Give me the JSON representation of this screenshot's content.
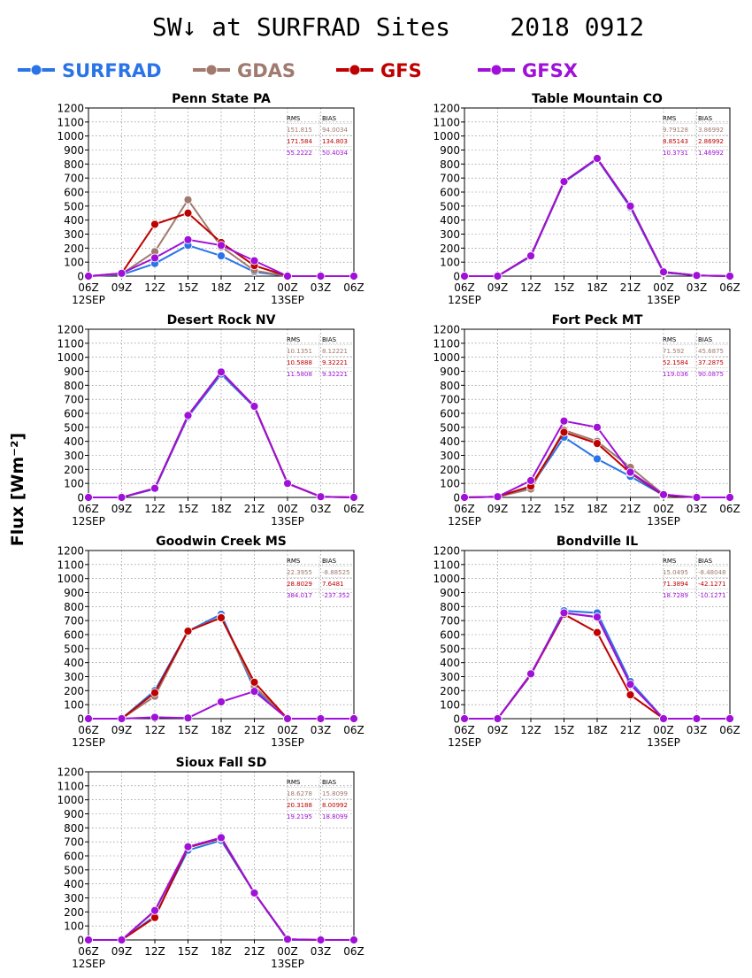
{
  "title": "SW↓ at SURFRAD Sites    2018 0912",
  "ylabel": "Flux [Wm⁻²]",
  "legend": [
    {
      "name": "SURFRAD",
      "color": "#2a74e8"
    },
    {
      "name": "GDAS",
      "color": "#a07a6e"
    },
    {
      "name": "GFS",
      "color": "#bf0000"
    },
    {
      "name": "GFSX",
      "color": "#a010d8"
    }
  ],
  "stats_headers": [
    "RMS",
    "BIAS"
  ],
  "chart_data": [
    {
      "type": "line",
      "title": "Penn State PA",
      "x": [
        "06Z",
        "09Z",
        "12Z",
        "15Z",
        "18Z",
        "21Z",
        "00Z",
        "03Z",
        "06Z"
      ],
      "date_labels": [
        "12SEP",
        "13SEP"
      ],
      "ylim": [
        0,
        1200
      ],
      "yticks": [
        0,
        100,
        200,
        300,
        400,
        500,
        600,
        700,
        800,
        900,
        1000,
        1100,
        1200
      ],
      "grid": true,
      "series": [
        {
          "name": "SURFRAD",
          "values": [
            0,
            10,
            90,
            220,
            145,
            30,
            0,
            null,
            null
          ]
        },
        {
          "name": "GDAS",
          "values": [
            0,
            15,
            175,
            545,
            210,
            40,
            0,
            0,
            0
          ]
        },
        {
          "name": "GFS",
          "values": [
            0,
            20,
            370,
            450,
            240,
            75,
            0,
            0,
            0
          ]
        },
        {
          "name": "GFSX",
          "values": [
            0,
            20,
            130,
            260,
            220,
            110,
            0,
            0,
            0
          ]
        }
      ],
      "stats": [
        {
          "name": "GDAS",
          "rms": "151.815",
          "bias": "94.0034"
        },
        {
          "name": "GFS",
          "rms": "171.584",
          "bias": "134.803"
        },
        {
          "name": "GFSX",
          "rms": "55.2222",
          "bias": "50.4034"
        }
      ]
    },
    {
      "type": "line",
      "title": "Table Mountain CO",
      "x": [
        "06Z",
        "09Z",
        "12Z",
        "15Z",
        "18Z",
        "21Z",
        "00Z",
        "03Z",
        "06Z"
      ],
      "date_labels": [
        "12SEP",
        "13SEP"
      ],
      "ylim": [
        0,
        1200
      ],
      "yticks": [
        0,
        100,
        200,
        300,
        400,
        500,
        600,
        700,
        800,
        900,
        1000,
        1100,
        1200
      ],
      "grid": true,
      "series": [
        {
          "name": "SURFRAD",
          "values": [
            0,
            0,
            140,
            670,
            835,
            490,
            25,
            5,
            0
          ]
        },
        {
          "name": "GDAS",
          "values": [
            0,
            0,
            145,
            675,
            840,
            500,
            30,
            5,
            0
          ]
        },
        {
          "name": "GFS",
          "values": [
            0,
            0,
            145,
            675,
            840,
            500,
            30,
            5,
            0
          ]
        },
        {
          "name": "GFSX",
          "values": [
            0,
            0,
            145,
            675,
            840,
            500,
            30,
            5,
            0
          ]
        }
      ],
      "stats": [
        {
          "name": "GDAS",
          "rms": "9.79128",
          "bias": "3.86992"
        },
        {
          "name": "GFS",
          "rms": "8.85143",
          "bias": "2.86992"
        },
        {
          "name": "GFSX",
          "rms": "10.3731",
          "bias": "1.46992"
        }
      ]
    },
    {
      "type": "line",
      "title": "Desert Rock NV",
      "x": [
        "06Z",
        "09Z",
        "12Z",
        "15Z",
        "18Z",
        "21Z",
        "00Z",
        "03Z",
        "06Z"
      ],
      "date_labels": [
        "12SEP",
        "13SEP"
      ],
      "ylim": [
        0,
        1200
      ],
      "yticks": [
        0,
        100,
        200,
        300,
        400,
        500,
        600,
        700,
        800,
        900,
        1000,
        1100,
        1200
      ],
      "grid": true,
      "series": [
        {
          "name": "SURFRAD",
          "values": [
            0,
            0,
            60,
            575,
            880,
            645,
            100,
            5,
            0
          ]
        },
        {
          "name": "GDAS",
          "values": [
            0,
            0,
            65,
            585,
            895,
            650,
            100,
            5,
            0
          ]
        },
        {
          "name": "GFS",
          "values": [
            0,
            0,
            65,
            585,
            895,
            650,
            100,
            5,
            0
          ]
        },
        {
          "name": "GFSX",
          "values": [
            0,
            0,
            65,
            585,
            895,
            650,
            100,
            5,
            0
          ]
        }
      ],
      "stats": [
        {
          "name": "GDAS",
          "rms": "10.1351",
          "bias": "8.12221"
        },
        {
          "name": "GFS",
          "rms": "10.5888",
          "bias": "9.32221"
        },
        {
          "name": "GFSX",
          "rms": "11.5808",
          "bias": "9.32221"
        }
      ]
    },
    {
      "type": "line",
      "title": "Fort Peck MT",
      "x": [
        "06Z",
        "09Z",
        "12Z",
        "15Z",
        "18Z",
        "21Z",
        "00Z",
        "03Z",
        "06Z"
      ],
      "date_labels": [
        "12SEP",
        "13SEP"
      ],
      "ylim": [
        0,
        1200
      ],
      "yticks": [
        0,
        100,
        200,
        300,
        400,
        500,
        600,
        700,
        800,
        900,
        1000,
        1100,
        1200
      ],
      "grid": true,
      "series": [
        {
          "name": "SURFRAD",
          "values": [
            0,
            5,
            75,
            430,
            275,
            150,
            15,
            0,
            0
          ]
        },
        {
          "name": "GDAS",
          "values": [
            0,
            5,
            60,
            480,
            400,
            215,
            20,
            0,
            0
          ]
        },
        {
          "name": "GFS",
          "values": [
            0,
            5,
            80,
            465,
            385,
            175,
            15,
            0,
            0
          ]
        },
        {
          "name": "GFSX",
          "values": [
            0,
            5,
            120,
            545,
            500,
            180,
            20,
            0,
            0
          ]
        }
      ],
      "stats": [
        {
          "name": "GDAS",
          "rms": "71.592",
          "bias": "45.6875"
        },
        {
          "name": "GFS",
          "rms": "52.1584",
          "bias": "37.2875"
        },
        {
          "name": "GFSX",
          "rms": "119.036",
          "bias": "90.0875"
        }
      ]
    },
    {
      "type": "line",
      "title": "Goodwin Creek MS",
      "x": [
        "06Z",
        "09Z",
        "12Z",
        "15Z",
        "18Z",
        "21Z",
        "00Z",
        "03Z",
        "06Z"
      ],
      "date_labels": [
        "12SEP",
        "13SEP"
      ],
      "ylim": [
        0,
        1200
      ],
      "yticks": [
        0,
        100,
        200,
        300,
        400,
        500,
        600,
        700,
        800,
        900,
        1000,
        1100,
        1200
      ],
      "grid": true,
      "series": [
        {
          "name": "SURFRAD",
          "values": [
            0,
            0,
            200,
            625,
            745,
            210,
            0,
            0,
            0
          ]
        },
        {
          "name": "GDAS",
          "values": [
            0,
            0,
            160,
            625,
            725,
            230,
            0,
            0,
            0
          ]
        },
        {
          "name": "GFS",
          "values": [
            0,
            0,
            185,
            625,
            720,
            260,
            0,
            0,
            0
          ]
        },
        {
          "name": "GFSX",
          "values": [
            0,
            0,
            10,
            5,
            120,
            195,
            0,
            0,
            0
          ]
        }
      ],
      "stats": [
        {
          "name": "GDAS",
          "rms": "22.3955",
          "bias": "-8.88525"
        },
        {
          "name": "GFS",
          "rms": "28.8029",
          "bias": "7.6481"
        },
        {
          "name": "GFSX",
          "rms": "384.017",
          "bias": "-237.352"
        }
      ]
    },
    {
      "type": "line",
      "title": "Bondville IL",
      "x": [
        "06Z",
        "09Z",
        "12Z",
        "15Z",
        "18Z",
        "21Z",
        "00Z",
        "03Z",
        "06Z"
      ],
      "date_labels": [
        "12SEP",
        "13SEP"
      ],
      "ylim": [
        0,
        1200
      ],
      "yticks": [
        0,
        100,
        200,
        300,
        400,
        500,
        600,
        700,
        800,
        900,
        1000,
        1100,
        1200
      ],
      "grid": true,
      "series": [
        {
          "name": "SURFRAD",
          "values": [
            0,
            0,
            310,
            770,
            755,
            265,
            0,
            0,
            0
          ]
        },
        {
          "name": "GDAS",
          "values": [
            0,
            0,
            315,
            755,
            725,
            245,
            0,
            0,
            0
          ]
        },
        {
          "name": "GFS",
          "values": [
            0,
            0,
            315,
            745,
            615,
            170,
            0,
            0,
            0
          ]
        },
        {
          "name": "GFSX",
          "values": [
            0,
            0,
            320,
            755,
            725,
            245,
            0,
            0,
            0
          ]
        }
      ],
      "stats": [
        {
          "name": "GDAS",
          "rms": "15.0495",
          "bias": "-8.48048"
        },
        {
          "name": "GFS",
          "rms": "71.3894",
          "bias": "-42.1271"
        },
        {
          "name": "GFSX",
          "rms": "18.7289",
          "bias": "-10.1271"
        }
      ]
    },
    {
      "type": "line",
      "title": "Sioux Fall SD",
      "x": [
        "06Z",
        "09Z",
        "12Z",
        "15Z",
        "18Z",
        "21Z",
        "00Z",
        "03Z",
        "06Z"
      ],
      "date_labels": [
        "12SEP",
        "13SEP"
      ],
      "ylim": [
        0,
        1200
      ],
      "yticks": [
        0,
        100,
        200,
        300,
        400,
        500,
        600,
        700,
        800,
        900,
        1000,
        1100,
        1200
      ],
      "grid": true,
      "series": [
        {
          "name": "SURFRAD",
          "values": [
            0,
            0,
            170,
            640,
            710,
            335,
            0,
            0,
            null
          ]
        },
        {
          "name": "GDAS",
          "values": [
            0,
            0,
            205,
            660,
            730,
            335,
            5,
            0,
            0
          ]
        },
        {
          "name": "GFS",
          "values": [
            0,
            0,
            160,
            660,
            725,
            335,
            5,
            0,
            0
          ]
        },
        {
          "name": "GFSX",
          "values": [
            0,
            0,
            210,
            665,
            730,
            335,
            5,
            0,
            0
          ]
        }
      ],
      "stats": [
        {
          "name": "GDAS",
          "rms": "18.6278",
          "bias": "15.8099"
        },
        {
          "name": "GFS",
          "rms": "20.3188",
          "bias": "8.00992"
        },
        {
          "name": "GFSX",
          "rms": "19.2195",
          "bias": "18.8099"
        }
      ]
    }
  ]
}
